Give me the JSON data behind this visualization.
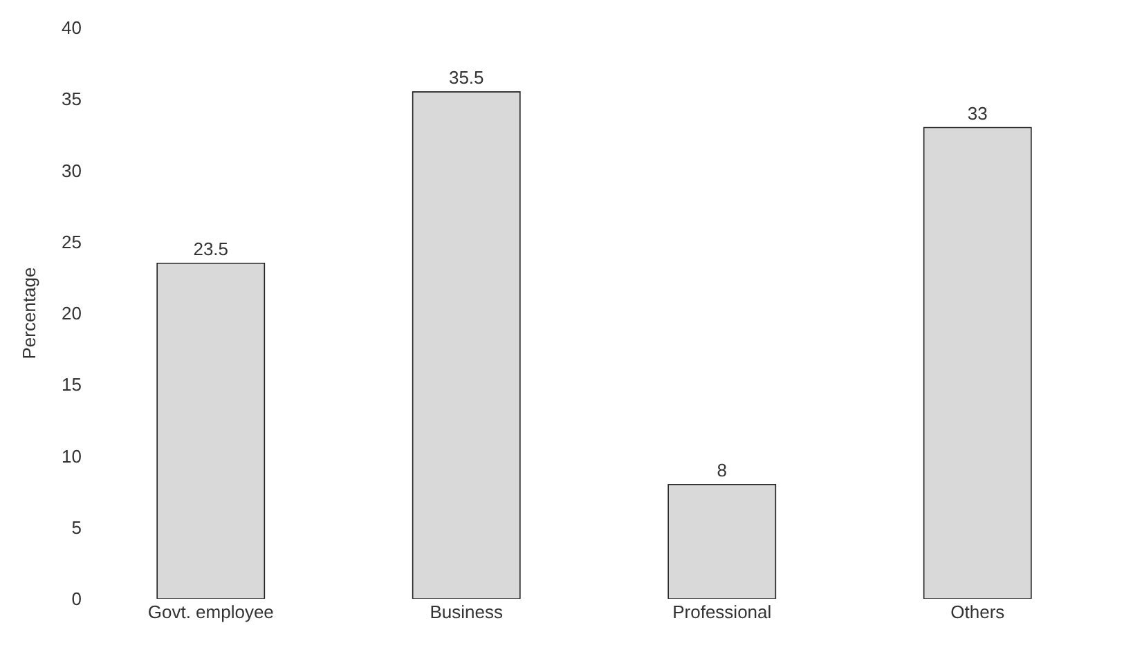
{
  "chart_data": {
    "type": "bar",
    "ylabel": "Percentage",
    "categories": [
      "Govt. employee",
      "Business",
      "Professional",
      "Others"
    ],
    "values": [
      23.5,
      35.5,
      8,
      33
    ],
    "color": "#d9d9d9",
    "ylim": [
      0,
      40
    ],
    "yticks": [
      0,
      5,
      10,
      15,
      20,
      25,
      30,
      35,
      40
    ],
    "data_labels": true
  }
}
